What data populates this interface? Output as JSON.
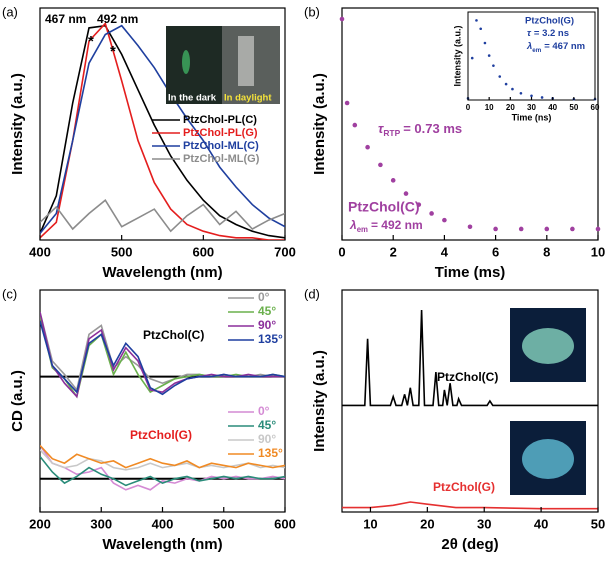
{
  "chart_data": [
    {
      "type": "line",
      "panel_label": "(a)",
      "xlabel": "Wavelength (nm)",
      "ylabel": "Intensity (a.u.)",
      "xlim": [
        400,
        700
      ],
      "ylim": [
        0,
        1.05
      ],
      "xticks": [
        400,
        500,
        600,
        700
      ],
      "x": [
        400,
        420,
        440,
        460,
        480,
        500,
        520,
        540,
        560,
        580,
        600,
        620,
        640,
        660,
        680,
        700
      ],
      "series": [
        {
          "name": "PtzChol-PL(C)",
          "color": "#000000",
          "values": [
            0.03,
            0.2,
            0.62,
            0.96,
            0.97,
            0.84,
            0.68,
            0.52,
            0.38,
            0.27,
            0.18,
            0.11,
            0.07,
            0.04,
            0.02,
            0.01
          ]
        },
        {
          "name": "PtzChol-PL(G)",
          "color": "#e41e1e",
          "values": [
            0.01,
            0.08,
            0.45,
            0.9,
            0.98,
            0.72,
            0.45,
            0.26,
            0.14,
            0.07,
            0.04,
            0.02,
            0.01,
            0.01,
            0.0,
            0.0
          ]
        },
        {
          "name": "PtzChol-ML(C)",
          "color": "#1f3f9f",
          "values": [
            0.03,
            0.12,
            0.45,
            0.8,
            0.93,
            0.97,
            0.88,
            0.78,
            0.66,
            0.55,
            0.45,
            0.33,
            0.24,
            0.16,
            0.1,
            0.06
          ]
        },
        {
          "name": "PtzChol-ML(G)",
          "color": "#8c8c8c",
          "values": [
            0.08,
            0.15,
            0.05,
            0.12,
            0.18,
            0.06,
            0.1,
            0.14,
            0.04,
            0.11,
            0.16,
            0.07,
            0.13,
            0.05,
            0.09,
            0.12
          ]
        }
      ],
      "annotations": [
        "467 nm",
        "492 nm",
        "*",
        "*"
      ],
      "inset_labels": [
        "In the dark",
        "In daylight"
      ]
    },
    {
      "type": "scatter",
      "panel_label": "(b)",
      "xlabel": "Time (ms)",
      "ylabel": "Intensity (a.u.)",
      "xlim": [
        0,
        10
      ],
      "ylim": [
        0,
        1.05
      ],
      "xticks": [
        0,
        2,
        4,
        6,
        8,
        10
      ],
      "x": [
        0,
        0.2,
        0.5,
        1,
        1.5,
        2,
        2.5,
        3,
        3.5,
        4,
        5,
        6,
        7,
        8,
        9,
        10
      ],
      "series": [
        {
          "name": "PtzChol(C)",
          "color": "#a040a0",
          "values": [
            1.0,
            0.62,
            0.52,
            0.42,
            0.34,
            0.27,
            0.21,
            0.16,
            0.12,
            0.09,
            0.06,
            0.05,
            0.05,
            0.05,
            0.05,
            0.05
          ]
        }
      ],
      "annotations": [
        {
          "symbol": "τ",
          "subscript": "RTP",
          "text": "= 0.73 ms"
        },
        {
          "symbol": "λ",
          "subscript": "em",
          "text": "= 492 nm"
        }
      ],
      "inset": {
        "type": "scatter",
        "xlabel": "Time (ns)",
        "ylabel": "Intensity (a.u.)",
        "xlim": [
          0,
          60
        ],
        "ylim": [
          0,
          1.05
        ],
        "xticks": [
          0,
          10,
          20,
          30,
          40,
          50,
          60
        ],
        "x": [
          0,
          2,
          4,
          6,
          8,
          10,
          12,
          15,
          18,
          21,
          25,
          30,
          35,
          40,
          50,
          60
        ],
        "series": [
          {
            "name": "PtzChol(G)",
            "color": "#1f3f9f",
            "values": [
              0.02,
              0.5,
              0.95,
              0.85,
              0.68,
              0.53,
              0.41,
              0.28,
              0.19,
              0.13,
              0.08,
              0.05,
              0.03,
              0.02,
              0.01,
              0.01
            ]
          }
        ],
        "annotations": [
          {
            "symbol": "τ",
            "text": "= 3.2 ns"
          },
          {
            "symbol": "λ",
            "subscript": "em",
            "text": "= 467 nm"
          }
        ]
      }
    },
    {
      "type": "line",
      "panel_label": "(c)",
      "xlabel": "Wavelength (nm)",
      "ylabel": "CD (a.u.)",
      "xlim": [
        200,
        600
      ],
      "ylim": [
        0,
        1
      ],
      "xticks": [
        200,
        300,
        400,
        500,
        600
      ],
      "x": [
        200,
        220,
        240,
        260,
        280,
        300,
        320,
        340,
        360,
        380,
        400,
        420,
        440,
        460,
        480,
        500,
        520,
        540,
        560,
        580,
        600
      ],
      "reference_lines": [
        0.61,
        0.15
      ],
      "group_labels": [
        "PtzChol(C)",
        "PtzChol(G)"
      ],
      "series": [
        {
          "name": "0°",
          "color": "#999999",
          "values": [
            0.9,
            0.68,
            0.62,
            0.55,
            0.8,
            0.84,
            0.65,
            0.7,
            0.66,
            0.6,
            0.58,
            0.6,
            0.62,
            0.62,
            0.61,
            0.62,
            0.61,
            0.61,
            0.62,
            0.61,
            0.61
          ]
        },
        {
          "name": "45°",
          "color": "#6ab04c",
          "values": [
            0.88,
            0.65,
            0.6,
            0.52,
            0.75,
            0.8,
            0.62,
            0.72,
            0.62,
            0.54,
            0.57,
            0.6,
            0.61,
            0.62,
            0.61,
            0.61,
            0.62,
            0.61,
            0.61,
            0.62,
            0.61
          ]
        },
        {
          "name": "90°",
          "color": "#8b2f9b",
          "values": [
            0.9,
            0.66,
            0.58,
            0.52,
            0.78,
            0.82,
            0.64,
            0.74,
            0.68,
            0.55,
            0.54,
            0.58,
            0.6,
            0.61,
            0.62,
            0.61,
            0.61,
            0.62,
            0.61,
            0.61,
            0.61
          ]
        },
        {
          "name": "135°",
          "color": "#1f3fa0",
          "values": [
            0.86,
            0.66,
            0.6,
            0.54,
            0.76,
            0.8,
            0.66,
            0.76,
            0.7,
            0.56,
            0.53,
            0.57,
            0.6,
            0.61,
            0.61,
            0.62,
            0.61,
            0.61,
            0.61,
            0.62,
            0.61
          ]
        },
        {
          "name": "0°",
          "color": "#d48ad4",
          "values": [
            0.3,
            0.22,
            0.2,
            0.17,
            0.18,
            0.2,
            0.13,
            0.1,
            0.12,
            0.1,
            0.14,
            0.13,
            0.15,
            0.14,
            0.16,
            0.15,
            0.16,
            0.15,
            0.15,
            0.16,
            0.15
          ]
        },
        {
          "name": "45°",
          "color": "#2a8c7a",
          "values": [
            0.25,
            0.18,
            0.13,
            0.16,
            0.2,
            0.17,
            0.15,
            0.12,
            0.14,
            0.16,
            0.13,
            0.15,
            0.16,
            0.14,
            0.15,
            0.16,
            0.15,
            0.16,
            0.15,
            0.15,
            0.16
          ]
        },
        {
          "name": "90°",
          "color": "#c8c8c8",
          "values": [
            0.28,
            0.22,
            0.2,
            0.21,
            0.24,
            0.23,
            0.2,
            0.19,
            0.2,
            0.22,
            0.2,
            0.21,
            0.22,
            0.2,
            0.21,
            0.2,
            0.21,
            0.22,
            0.2,
            0.21,
            0.2
          ]
        },
        {
          "name": "135°",
          "color": "#f08a24",
          "values": [
            0.3,
            0.24,
            0.22,
            0.26,
            0.24,
            0.22,
            0.23,
            0.2,
            0.22,
            0.24,
            0.22,
            0.21,
            0.23,
            0.2,
            0.22,
            0.21,
            0.2,
            0.22,
            0.21,
            0.2,
            0.21
          ]
        }
      ]
    },
    {
      "type": "line",
      "panel_label": "(d)",
      "xlabel": "2θ (deg)",
      "ylabel": "Intensity (a.u.)",
      "xlim": [
        5,
        50
      ],
      "ylim": [
        0,
        1
      ],
      "xticks": [
        10,
        20,
        30,
        40,
        50
      ],
      "series": [
        {
          "name": "PtzChol(C)",
          "color": "#000000",
          "x": [
            5,
            9,
            9.5,
            10,
            13.5,
            14,
            14.5,
            15.5,
            16,
            16.5,
            17,
            17.5,
            18.5,
            19,
            19.5,
            21,
            21.5,
            22,
            22.7,
            23,
            23.5,
            24,
            24.5,
            25.2,
            25.5,
            26,
            30.5,
            31,
            31.5,
            50
          ],
          "values": [
            0.48,
            0.48,
            0.78,
            0.48,
            0.48,
            0.52,
            0.48,
            0.48,
            0.53,
            0.48,
            0.56,
            0.48,
            0.48,
            0.91,
            0.48,
            0.48,
            0.63,
            0.48,
            0.48,
            0.55,
            0.48,
            0.58,
            0.48,
            0.48,
            0.51,
            0.48,
            0.48,
            0.5,
            0.48,
            0.48
          ]
        },
        {
          "name": "PtzChol(G)",
          "color": "#e53030",
          "x": [
            5,
            10,
            14,
            17,
            20,
            25,
            30,
            40,
            50
          ],
          "values": [
            0.02,
            0.02,
            0.03,
            0.045,
            0.035,
            0.02,
            0.02,
            0.015,
            0.015
          ]
        }
      ]
    }
  ]
}
